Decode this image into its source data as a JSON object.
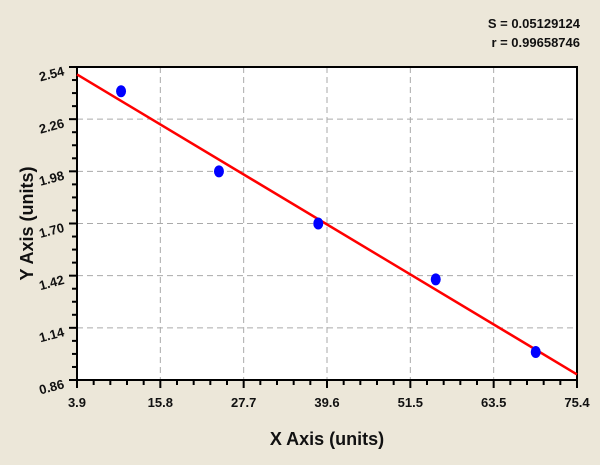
{
  "stats": {
    "s": "S = 0.05129124",
    "r": "r = 0.99658746"
  },
  "chart_data": {
    "type": "scatter",
    "xlabel": "X Axis (units)",
    "ylabel": "Y Axis (units)",
    "xlim": [
      3.9,
      75.4
    ],
    "ylim": [
      0.86,
      2.54
    ],
    "xticks": [
      "3.9",
      "15.8",
      "27.7",
      "39.6",
      "51.5",
      "63.5",
      "75.4"
    ],
    "yticks": [
      "0.86",
      "1.14",
      "1.42",
      "1.70",
      "1.98",
      "2.26",
      "2.54"
    ],
    "grid": true,
    "points": [
      {
        "x": 10.2,
        "y": 2.41
      },
      {
        "x": 24.2,
        "y": 1.98
      },
      {
        "x": 38.4,
        "y": 1.7
      },
      {
        "x": 55.2,
        "y": 1.4
      },
      {
        "x": 69.5,
        "y": 1.01
      }
    ],
    "fit_line": {
      "x": [
        3.9,
        75.4
      ],
      "y": [
        2.5,
        0.89
      ]
    },
    "colors": {
      "points": "#0000ff",
      "fit_line": "#ff0000",
      "background": "#ece7d9"
    }
  }
}
